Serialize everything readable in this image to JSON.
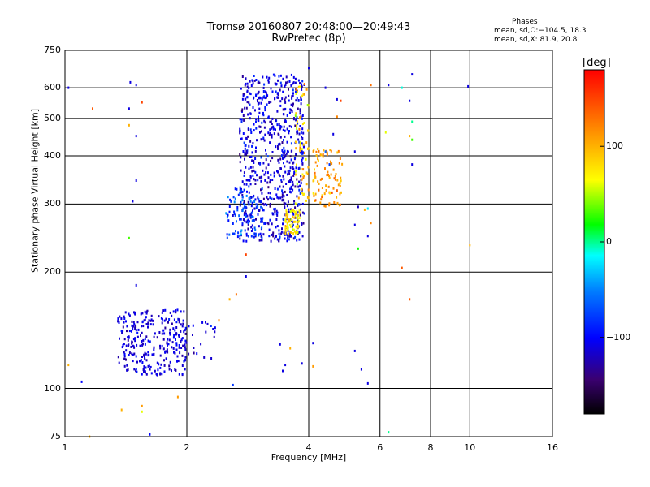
{
  "header": {
    "title_line1": "Tromsø 20160807 20:48:00—20:49:43",
    "title_line2": "RwPretec (8p)",
    "phases_heading": "Phases",
    "phases_o": "mean, sd,O:−104.5, 18.3",
    "phases_x": "mean, sd,X:  81.9, 20.8"
  },
  "colorbar": {
    "unit": "[deg]",
    "tick_labels": [
      "100",
      "0",
      "−100"
    ],
    "tick_values": [
      100,
      0,
      -100
    ],
    "range": [
      -180,
      180
    ],
    "colormap": "rainbow"
  },
  "chart_data": {
    "type": "scatter",
    "title": "Tromsø 20160807 20:48:00—20:49:43",
    "subtitle": "RwPretec (8p)",
    "xlabel": "Frequency [MHz]",
    "ylabel": "Stationary phase Virtual Height [km]",
    "x_scale": "log",
    "y_scale": "log",
    "xlim": [
      1,
      16
    ],
    "ylim": [
      75,
      750
    ],
    "x_ticks": [
      1,
      2,
      4,
      6,
      8,
      10,
      16
    ],
    "x_tick_labels": [
      "1",
      "2",
      "4",
      "6",
      "8",
      "10",
      "16"
    ],
    "y_ticks": [
      75,
      100,
      200,
      300,
      400,
      500,
      600,
      750
    ],
    "y_tick_labels": [
      "75",
      "100",
      "200",
      "300",
      "400",
      "500",
      "600",
      "750"
    ],
    "grid": true,
    "color_by": "phase [deg]",
    "clusters": [
      {
        "x_range": [
          2.7,
          3.9
        ],
        "y_range": [
          240,
          650
        ],
        "phase_mean": -110,
        "phase_sd": 15,
        "count": 700
      },
      {
        "x_range": [
          2.5,
          3.1
        ],
        "y_range": [
          245,
          330
        ],
        "phase_mean": -75,
        "phase_sd": 20,
        "count": 90
      },
      {
        "x_range": [
          3.5,
          3.8
        ],
        "y_range": [
          250,
          290
        ],
        "phase_mean": 75,
        "phase_sd": 15,
        "count": 70
      },
      {
        "x_range": [
          3.7,
          4.0
        ],
        "y_range": [
          300,
          620
        ],
        "phase_mean": 90,
        "phase_sd": 25,
        "count": 60
      },
      {
        "x_range": [
          4.1,
          4.85
        ],
        "y_range": [
          295,
          420
        ],
        "phase_mean": 110,
        "phase_sd": 15,
        "count": 90
      },
      {
        "x_range": [
          1.35,
          2.0
        ],
        "y_range": [
          108,
          160
        ],
        "phase_mean": -112,
        "phase_sd": 10,
        "count": 280
      },
      {
        "x_range": [
          1.85,
          2.35
        ],
        "y_range": [
          118,
          150
        ],
        "phase_mean": -108,
        "phase_sd": 10,
        "count": 30
      }
    ],
    "points": [
      {
        "x": 1.02,
        "y": 600,
        "phase": -110
      },
      {
        "x": 1.17,
        "y": 530,
        "phase": 140
      },
      {
        "x": 1.45,
        "y": 620,
        "phase": -110
      },
      {
        "x": 1.5,
        "y": 610,
        "phase": -110
      },
      {
        "x": 1.44,
        "y": 530,
        "phase": -110
      },
      {
        "x": 1.55,
        "y": 550,
        "phase": 150
      },
      {
        "x": 1.44,
        "y": 480,
        "phase": 100
      },
      {
        "x": 1.5,
        "y": 450,
        "phase": -110
      },
      {
        "x": 1.5,
        "y": 345,
        "phase": -110
      },
      {
        "x": 1.47,
        "y": 305,
        "phase": -110
      },
      {
        "x": 1.44,
        "y": 245,
        "phase": 30
      },
      {
        "x": 1.5,
        "y": 185,
        "phase": -110
      },
      {
        "x": 1.02,
        "y": 115,
        "phase": 100
      },
      {
        "x": 1.1,
        "y": 104,
        "phase": -100
      },
      {
        "x": 1.38,
        "y": 88,
        "phase": 100
      },
      {
        "x": 1.55,
        "y": 90,
        "phase": 110
      },
      {
        "x": 1.55,
        "y": 87,
        "phase": 60
      },
      {
        "x": 1.62,
        "y": 76,
        "phase": -100
      },
      {
        "x": 1.15,
        "y": 75,
        "phase": 100
      },
      {
        "x": 1.9,
        "y": 95,
        "phase": 110
      },
      {
        "x": 2.4,
        "y": 150,
        "phase": 120
      },
      {
        "x": 2.55,
        "y": 170,
        "phase": 100
      },
      {
        "x": 2.65,
        "y": 175,
        "phase": 130
      },
      {
        "x": 2.6,
        "y": 102,
        "phase": -80
      },
      {
        "x": 2.8,
        "y": 195,
        "phase": -110
      },
      {
        "x": 2.8,
        "y": 222,
        "phase": 150
      },
      {
        "x": 3.4,
        "y": 130,
        "phase": -110
      },
      {
        "x": 3.5,
        "y": 115,
        "phase": -110
      },
      {
        "x": 3.45,
        "y": 111,
        "phase": -110
      },
      {
        "x": 3.6,
        "y": 127,
        "phase": 100
      },
      {
        "x": 3.85,
        "y": 116,
        "phase": -110
      },
      {
        "x": 4.1,
        "y": 131,
        "phase": -110
      },
      {
        "x": 4.1,
        "y": 114,
        "phase": 110
      },
      {
        "x": 4.0,
        "y": 675,
        "phase": -110
      },
      {
        "x": 4.4,
        "y": 600,
        "phase": -110
      },
      {
        "x": 4.7,
        "y": 560,
        "phase": -110
      },
      {
        "x": 4.8,
        "y": 555,
        "phase": 150
      },
      {
        "x": 4.7,
        "y": 505,
        "phase": 120
      },
      {
        "x": 4.6,
        "y": 455,
        "phase": -110
      },
      {
        "x": 4.5,
        "y": 380,
        "phase": -80
      },
      {
        "x": 4.4,
        "y": 410,
        "phase": -60
      },
      {
        "x": 5.2,
        "y": 410,
        "phase": -110
      },
      {
        "x": 5.3,
        "y": 295,
        "phase": -120
      },
      {
        "x": 5.5,
        "y": 290,
        "phase": 100
      },
      {
        "x": 5.2,
        "y": 265,
        "phase": -110
      },
      {
        "x": 5.6,
        "y": 292,
        "phase": -20
      },
      {
        "x": 5.7,
        "y": 268,
        "phase": 120
      },
      {
        "x": 5.6,
        "y": 248,
        "phase": -110
      },
      {
        "x": 5.3,
        "y": 230,
        "phase": 20
      },
      {
        "x": 5.2,
        "y": 125,
        "phase": -110
      },
      {
        "x": 5.4,
        "y": 112,
        "phase": -110
      },
      {
        "x": 5.6,
        "y": 103,
        "phase": -110
      },
      {
        "x": 5.7,
        "y": 610,
        "phase": 130
      },
      {
        "x": 6.3,
        "y": 610,
        "phase": -110
      },
      {
        "x": 6.8,
        "y": 600,
        "phase": -10
      },
      {
        "x": 7.2,
        "y": 650,
        "phase": -110
      },
      {
        "x": 7.1,
        "y": 555,
        "phase": -110
      },
      {
        "x": 7.2,
        "y": 490,
        "phase": 0
      },
      {
        "x": 7.1,
        "y": 450,
        "phase": 100
      },
      {
        "x": 7.2,
        "y": 440,
        "phase": 30
      },
      {
        "x": 6.2,
        "y": 460,
        "phase": 60
      },
      {
        "x": 7.2,
        "y": 380,
        "phase": -110
      },
      {
        "x": 6.8,
        "y": 205,
        "phase": 140
      },
      {
        "x": 7.1,
        "y": 170,
        "phase": 140
      },
      {
        "x": 6.3,
        "y": 77,
        "phase": 0
      },
      {
        "x": 9.9,
        "y": 605,
        "phase": -110
      },
      {
        "x": 10.0,
        "y": 235,
        "phase": 100
      }
    ]
  }
}
